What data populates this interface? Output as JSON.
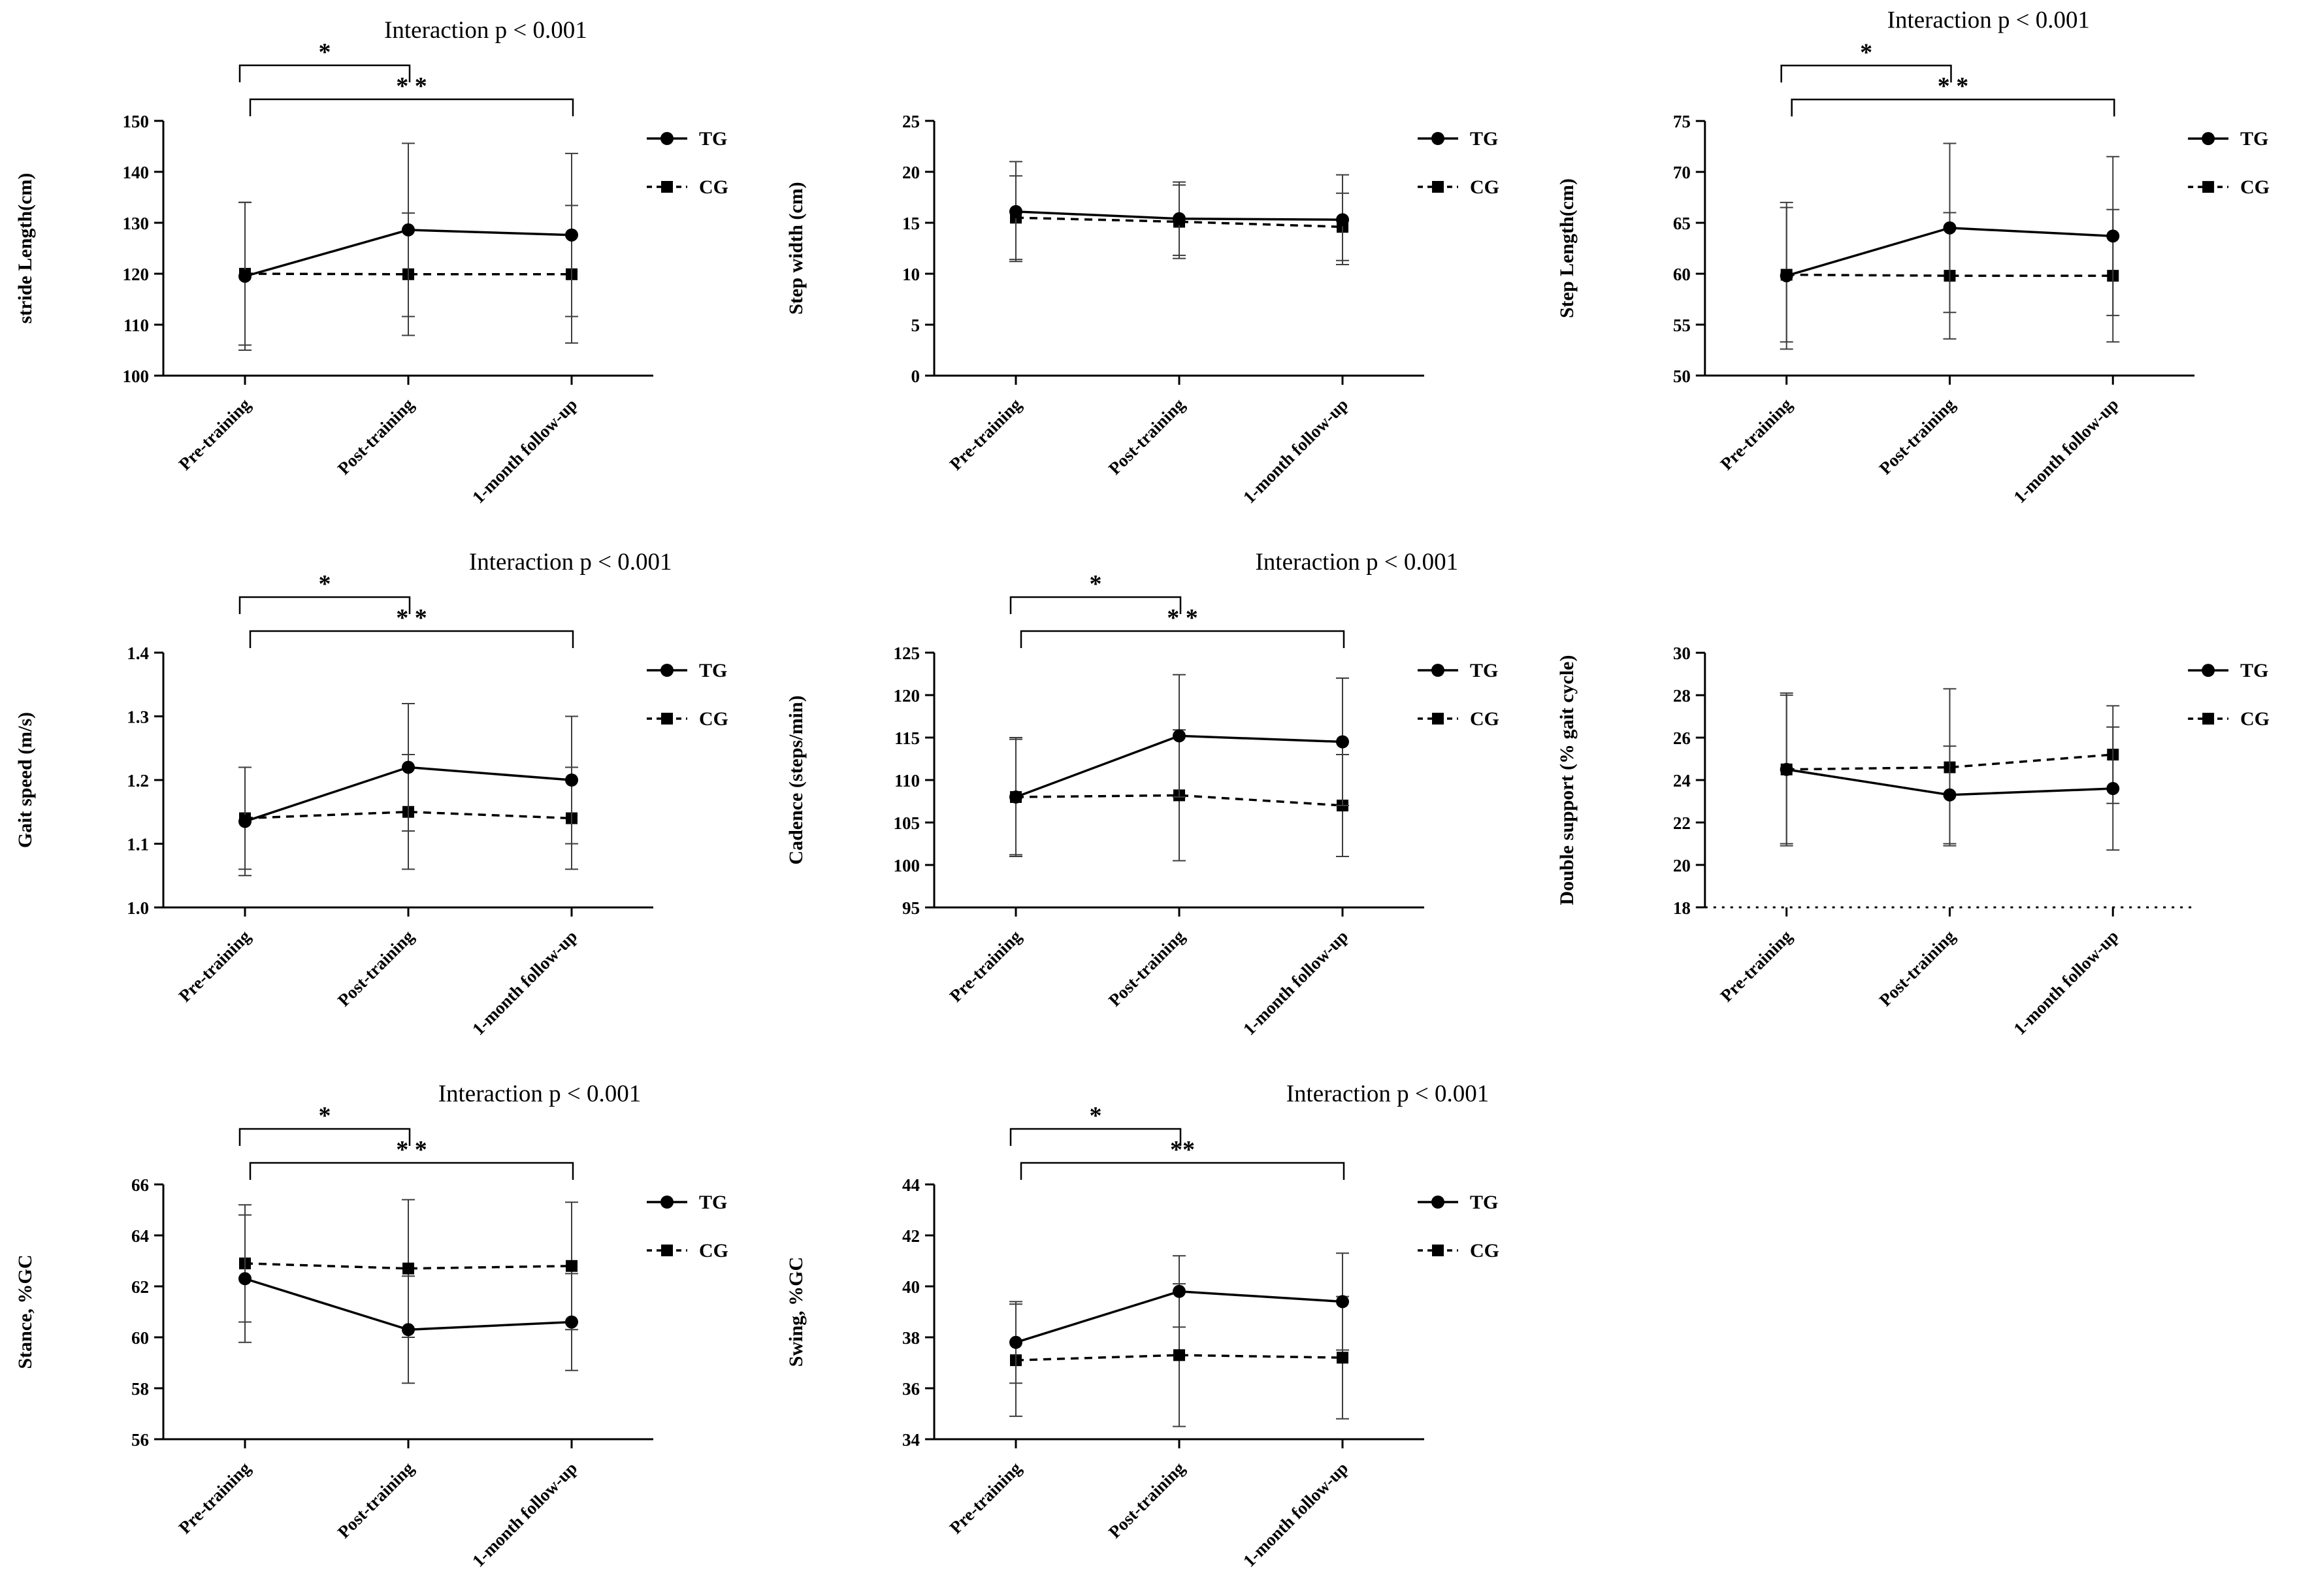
{
  "figure": {
    "background": "#ffffff",
    "line_color": "#000000",
    "error_bar_color": "#3d3d3d",
    "legend_labels": [
      "TG",
      "CG"
    ]
  },
  "chart_data": [
    {
      "id": "stride-length",
      "type": "line",
      "title": "Interaction p < 0.001",
      "ylabel": "stride Length(cm)",
      "categories": [
        "Pre-training",
        "Post-training",
        "1-month follow-up"
      ],
      "ylim": [
        100,
        150
      ],
      "yticks": [
        "100",
        "110",
        "120",
        "130",
        "140",
        "150"
      ],
      "series": [
        {
          "name": "TG",
          "line": "solid",
          "marker": "circle",
          "values": [
            119.5,
            128.6,
            127.6
          ],
          "errors": [
            14.5,
            17,
            16
          ]
        },
        {
          "name": "CG",
          "line": "dashed",
          "marker": "square",
          "values": [
            120,
            119.9,
            119.9
          ],
          "errors": [
            14,
            12,
            13.5
          ]
        }
      ],
      "significance": [
        {
          "from": 0,
          "to": 1,
          "label": "*",
          "level": 0
        },
        {
          "from": 0,
          "to": 2,
          "label": "* *",
          "level": 1
        }
      ],
      "legend_position": "right",
      "layout": {
        "title_fx": 0.63,
        "title_y": 58
      }
    },
    {
      "id": "step-width",
      "type": "line",
      "title": "",
      "ylabel": "Step width (cm)",
      "categories": [
        "Pre-training",
        "Post-training",
        "1-month follow-up"
      ],
      "ylim": [
        0,
        25
      ],
      "yticks": [
        "0",
        "5",
        "10",
        "15",
        "20",
        "25"
      ],
      "series": [
        {
          "name": "TG",
          "line": "solid",
          "marker": "circle",
          "values": [
            16.1,
            15.4,
            15.3
          ],
          "errors": [
            4.9,
            3.6,
            4.4
          ]
        },
        {
          "name": "CG",
          "line": "dashed",
          "marker": "square",
          "values": [
            15.5,
            15.1,
            14.6
          ],
          "errors": [
            4.1,
            3.6,
            3.3
          ]
        }
      ],
      "significance": [],
      "legend_position": "right",
      "layout": {
        "title_fx": 0.6,
        "title_y": 58
      }
    },
    {
      "id": "step-length",
      "type": "line",
      "title": "Interaction p < 0.001",
      "ylabel": "Step Length(cm)",
      "categories": [
        "Pre-training",
        "Post-training",
        "1-month follow-up"
      ],
      "ylim": [
        50,
        75
      ],
      "yticks": [
        "50",
        "55",
        "60",
        "65",
        "70",
        "75"
      ],
      "series": [
        {
          "name": "TG",
          "line": "solid",
          "marker": "circle",
          "values": [
            59.8,
            64.5,
            63.7
          ],
          "errors": [
            7.2,
            8.3,
            7.8
          ]
        },
        {
          "name": "CG",
          "line": "dashed",
          "marker": "square",
          "values": [
            59.9,
            59.8,
            59.8
          ],
          "errors": [
            6.6,
            6.2,
            6.5
          ]
        }
      ],
      "significance": [
        {
          "from": 0,
          "to": 1,
          "label": "*",
          "level": 0
        },
        {
          "from": 0,
          "to": 2,
          "label": "* *",
          "level": 1
        }
      ],
      "legend_position": "right",
      "layout": {
        "title_fx": 0.58,
        "title_y": 42
      }
    },
    {
      "id": "gait-speed",
      "type": "line",
      "title": "Interaction p < 0.001",
      "ylabel": "Gait speed (m/s)",
      "categories": [
        "Pre-training",
        "Post-training",
        "1-month follow-up"
      ],
      "ylim": [
        1.0,
        1.4
      ],
      "yticks": [
        "1.0",
        "1.1",
        "1.2",
        "1.3",
        "1.4"
      ],
      "series": [
        {
          "name": "TG",
          "line": "solid",
          "marker": "circle",
          "values": [
            1.135,
            1.22,
            1.2
          ],
          "errors": [
            0.085,
            0.1,
            0.1
          ]
        },
        {
          "name": "CG",
          "line": "dashed",
          "marker": "square",
          "values": [
            1.14,
            1.15,
            1.14
          ],
          "errors": [
            0.08,
            0.09,
            0.08
          ]
        }
      ],
      "significance": [
        {
          "from": 0,
          "to": 1,
          "label": "*",
          "level": 0
        },
        {
          "from": 0,
          "to": 2,
          "label": "* *",
          "level": 1
        }
      ],
      "legend_position": "right",
      "layout": {
        "title_fx": 0.74,
        "title_y": 58
      }
    },
    {
      "id": "cadence",
      "type": "line",
      "title": "Interaction p < 0.001",
      "ylabel": "Cadence (steps/min)",
      "categories": [
        "Pre-training",
        "Post-training",
        "1-month follow-up"
      ],
      "ylim": [
        95,
        125
      ],
      "yticks": [
        "95",
        "100",
        "105",
        "110",
        "115",
        "120",
        "125"
      ],
      "series": [
        {
          "name": "TG",
          "line": "solid",
          "marker": "circle",
          "values": [
            108,
            115.2,
            114.5
          ],
          "errors": [
            6.8,
            7.2,
            7.5
          ]
        },
        {
          "name": "CG",
          "line": "dashed",
          "marker": "square",
          "values": [
            108,
            108.2,
            107
          ],
          "errors": [
            7,
            7.7,
            6
          ]
        }
      ],
      "significance": [
        {
          "from": 0,
          "to": 1,
          "label": "*",
          "level": 0
        },
        {
          "from": 0,
          "to": 2,
          "label": "* *",
          "level": 1
        }
      ],
      "legend_position": "right",
      "layout": {
        "title_fx": 0.76,
        "title_y": 58
      }
    },
    {
      "id": "double-support",
      "type": "line",
      "title": "",
      "ylabel": "Double support (% gait cycle)",
      "categories": [
        "Pre-training",
        "Post-training",
        "1-month follow-up"
      ],
      "ylim": [
        18,
        30
      ],
      "yticks": [
        "18",
        "20",
        "22",
        "24",
        "26",
        "28",
        "30"
      ],
      "xaxis_style": "dotted",
      "series": [
        {
          "name": "TG",
          "line": "solid",
          "marker": "circle",
          "values": [
            24.5,
            23.3,
            23.6
          ],
          "errors": [
            3.6,
            2.3,
            2.9
          ]
        },
        {
          "name": "CG",
          "line": "dashed",
          "marker": "square",
          "values": [
            24.5,
            24.6,
            25.2
          ],
          "errors": [
            3.5,
            3.7,
            2.3
          ]
        }
      ],
      "significance": [],
      "legend_position": "right",
      "layout": {
        "title_fx": 0.6,
        "title_y": 58
      }
    },
    {
      "id": "stance",
      "type": "line",
      "title": "Interaction p < 0.001",
      "ylabel": "Stance, %GC",
      "categories": [
        "Pre-training",
        "Post-training",
        "1-month follow-up"
      ],
      "ylim": [
        56,
        66
      ],
      "yticks": [
        "56",
        "58",
        "60",
        "62",
        "64",
        "66"
      ],
      "series": [
        {
          "name": "TG",
          "line": "solid",
          "marker": "circle",
          "values": [
            62.3,
            60.3,
            60.6
          ],
          "errors": [
            2.5,
            2.1,
            1.9
          ]
        },
        {
          "name": "CG",
          "line": "dashed",
          "marker": "square",
          "values": [
            62.9,
            62.7,
            62.8
          ],
          "errors": [
            2.3,
            2.7,
            2.5
          ]
        }
      ],
      "significance": [
        {
          "from": 0,
          "to": 1,
          "label": "*",
          "level": 0
        },
        {
          "from": 0,
          "to": 2,
          "label": "* *",
          "level": 1
        }
      ],
      "legend_position": "right",
      "layout": {
        "title_fx": 0.7,
        "title_y": 58
      }
    },
    {
      "id": "swing",
      "type": "line",
      "title": "Interaction p < 0.001",
      "ylabel": "Swing, %GC",
      "categories": [
        "Pre-training",
        "Post-training",
        "1-month follow-up"
      ],
      "ylim": [
        34,
        44
      ],
      "yticks": [
        "34",
        "36",
        "38",
        "40",
        "42",
        "44"
      ],
      "series": [
        {
          "name": "TG",
          "line": "solid",
          "marker": "circle",
          "values": [
            37.8,
            39.8,
            39.4
          ],
          "errors": [
            1.6,
            1.4,
            1.9
          ]
        },
        {
          "name": "CG",
          "line": "dashed",
          "marker": "square",
          "values": [
            37.1,
            37.3,
            37.2
          ],
          "errors": [
            2.2,
            2.8,
            2.4
          ]
        }
      ],
      "significance": [
        {
          "from": 0,
          "to": 1,
          "label": "*",
          "level": 0
        },
        {
          "from": 0,
          "to": 2,
          "label": "**",
          "level": 1
        }
      ],
      "legend_position": "right",
      "layout": {
        "title_fx": 0.8,
        "title_y": 58
      }
    }
  ]
}
